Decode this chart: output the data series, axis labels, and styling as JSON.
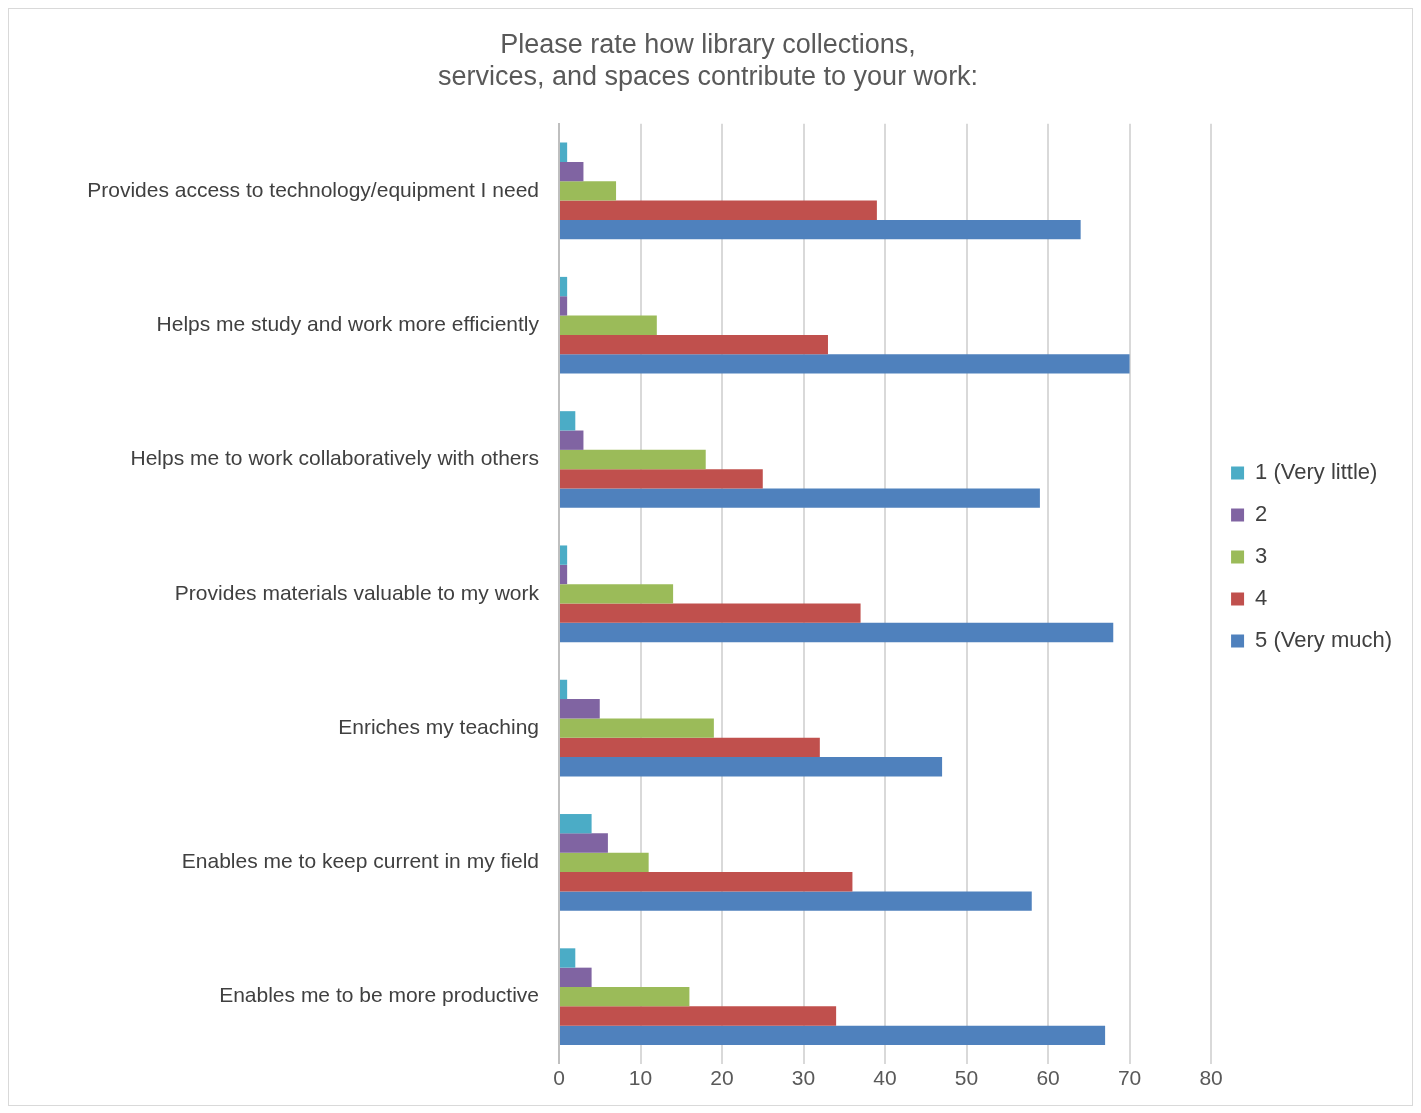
{
  "chart_data": {
    "type": "bar",
    "orientation": "horizontal",
    "title": "Please rate how library collections, services, and spaces contribute to your work:",
    "categories": [
      "Provides access to technology/equipment I need",
      "Helps me study and work more efficiently",
      "Helps me to work collaboratively with others",
      "Provides materials valuable to my work",
      "Enriches my teaching",
      "Enables me to keep current in my field",
      "Enables me to be more productive"
    ],
    "series": [
      {
        "name": "1 (Very little)",
        "color": "#4bacc6",
        "values": [
          1,
          1,
          2,
          1,
          1,
          4,
          2
        ]
      },
      {
        "name": "2",
        "color": "#8064a2",
        "values": [
          3,
          1,
          3,
          1,
          5,
          6,
          4
        ]
      },
      {
        "name": "3",
        "color": "#9bbb59",
        "values": [
          7,
          12,
          18,
          14,
          19,
          11,
          16
        ]
      },
      {
        "name": "4",
        "color": "#c0504d",
        "values": [
          39,
          33,
          25,
          37,
          32,
          36,
          34
        ]
      },
      {
        "name": "5 (Very much)",
        "color": "#4f81bd",
        "values": [
          64,
          70,
          59,
          68,
          47,
          58,
          67
        ]
      }
    ],
    "xlim": [
      0,
      80
    ],
    "xticks": [
      0,
      10,
      20,
      30,
      40,
      50,
      60,
      70,
      80
    ],
    "grid": "x",
    "legend": "right"
  }
}
